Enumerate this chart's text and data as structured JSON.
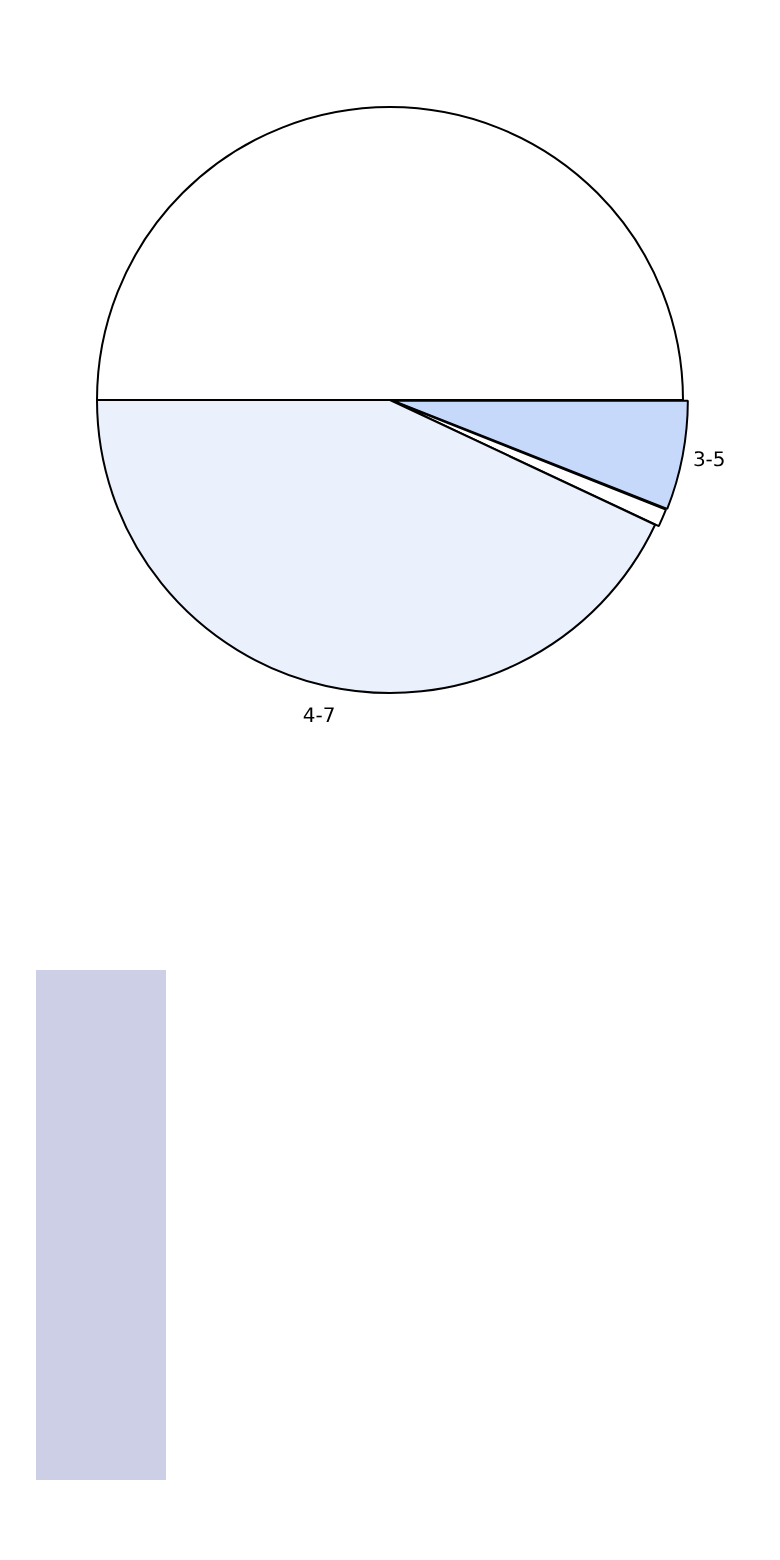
{
  "chart_data": {
    "type": "pie",
    "categories": [
      null,
      "3-5",
      null,
      "4-7"
    ],
    "values": [
      50,
      6,
      1,
      43
    ],
    "colors": [
      "#ffffff",
      "#c6d9fb",
      "#ffffff",
      "#eaf1fd"
    ]
  }
}
